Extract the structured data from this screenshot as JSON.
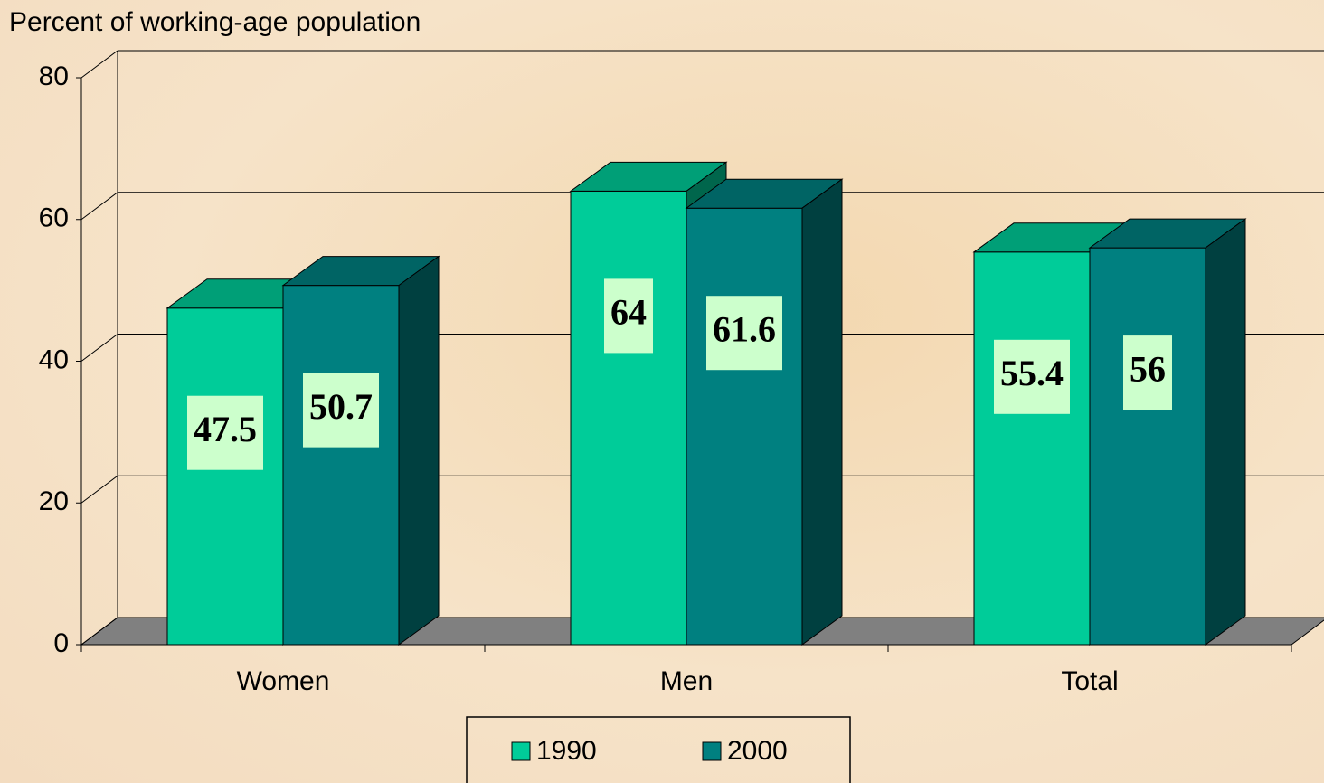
{
  "chart_data": {
    "type": "bar3d",
    "y_axis_label": "Percent of working-age population",
    "categories": [
      "Women",
      "Men",
      "Total"
    ],
    "series": [
      {
        "name": "1990",
        "color": "#00cc99",
        "values": [
          47.5,
          64,
          55.4
        ]
      },
      {
        "name": "2000",
        "color": "#008080",
        "values": [
          50.7,
          61.6,
          56
        ]
      }
    ],
    "ylim": [
      0,
      80
    ],
    "yticks": [
      0,
      20,
      40,
      60,
      80
    ],
    "grid": true,
    "legend": "bottom"
  }
}
